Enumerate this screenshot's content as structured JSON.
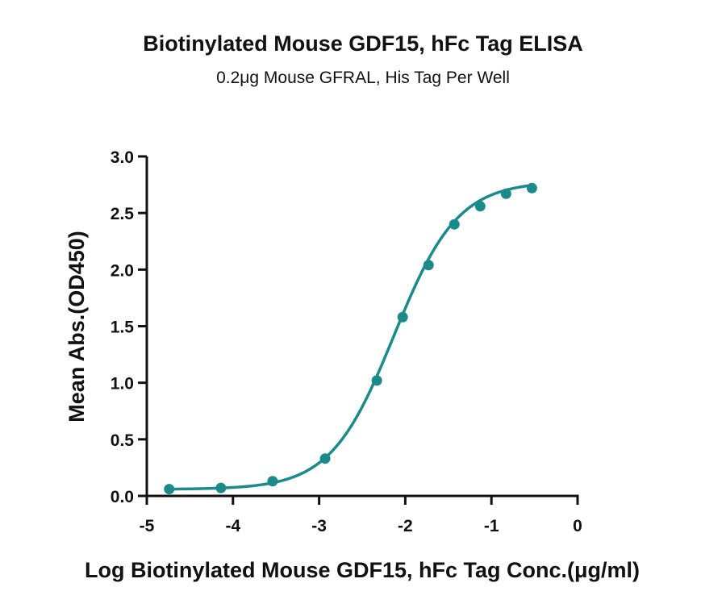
{
  "chart_data": {
    "type": "scatter",
    "title": "Biotinylated Mouse GDF15, hFc Tag ELISA",
    "subtitle": "0.2μg Mouse GFRAL, His Tag Per Well",
    "xlabel": "Log Biotinylated Mouse GDF15, hFc Tag Conc.(μg/ml)",
    "ylabel": "Mean Abs.(OD450)",
    "xlim": [
      -5,
      0
    ],
    "ylim": [
      0,
      3
    ],
    "x_ticks": [
      "-5",
      "-4",
      "-3",
      "-2",
      "-1",
      "0"
    ],
    "y_ticks": [
      "0.0",
      "0.5",
      "1.0",
      "1.5",
      "2.0",
      "2.5",
      "3.0"
    ],
    "series": [
      {
        "color": "#1a8a8a",
        "fit": "four-parameter logistic curve",
        "points": [
          {
            "x": -4.74,
            "y": 0.06
          },
          {
            "x": -4.14,
            "y": 0.07
          },
          {
            "x": -3.54,
            "y": 0.13
          },
          {
            "x": -2.93,
            "y": 0.33
          },
          {
            "x": -2.33,
            "y": 1.02
          },
          {
            "x": -2.03,
            "y": 1.58
          },
          {
            "x": -1.73,
            "y": 2.04
          },
          {
            "x": -1.43,
            "y": 2.4
          },
          {
            "x": -1.13,
            "y": 2.56
          },
          {
            "x": -0.83,
            "y": 2.67
          },
          {
            "x": -0.53,
            "y": 2.72
          }
        ]
      }
    ],
    "grid": false,
    "legend": "none"
  }
}
